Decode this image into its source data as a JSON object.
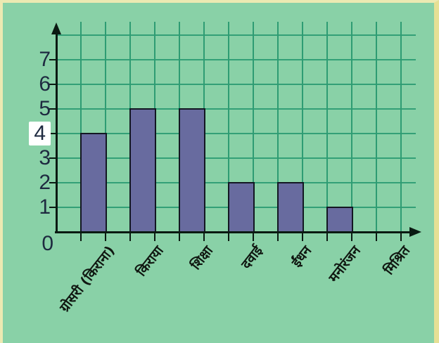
{
  "chart_data": {
    "type": "bar",
    "categories": [
      "ग्रोसरी (किराना)",
      "किराया",
      "शिक्षा",
      "दवाई",
      "ईंधन",
      "मनोरंजन",
      "मिश्रित"
    ],
    "values": [
      4,
      5,
      5,
      2,
      2,
      1,
      0
    ],
    "title": "",
    "xlabel": "",
    "ylabel": "",
    "ylim": [
      0,
      8
    ],
    "yticks": [
      0,
      1,
      2,
      3,
      4,
      5,
      6,
      7
    ],
    "highlighted_ytick": 4,
    "grid": true,
    "legend": "none",
    "colors": {
      "background": "#89d1a7",
      "frame_border_top_left": "#ece9b2",
      "frame_border_right": "#e6e095",
      "grid": "#33a077",
      "bar_fill": "#686b9f",
      "bar_border": "#131722",
      "axis": "#0a1a12",
      "ytick_text": "#1e2a40",
      "xtick_text": "#101711",
      "highlight_box": "#ffffff"
    }
  }
}
